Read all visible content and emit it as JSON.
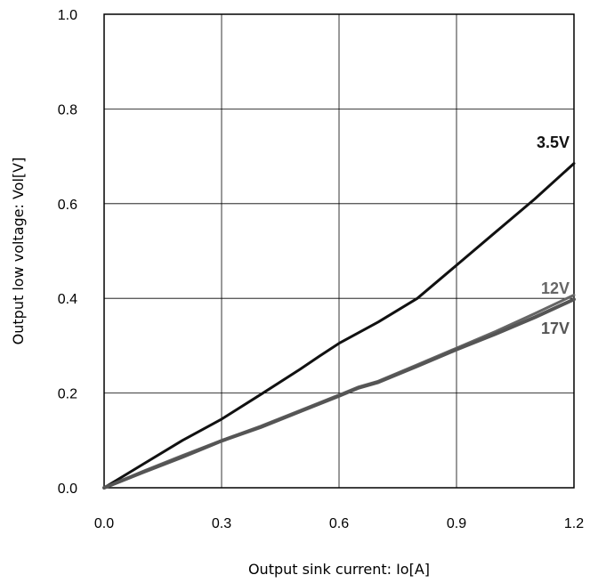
{
  "chart_data": {
    "type": "line",
    "xlabel": "Output sink current: Io[A]",
    "ylabel": "Output low voltage: Vol[V]",
    "xlim": [
      0,
      1.2
    ],
    "ylim": [
      0,
      1.0
    ],
    "xticks": [
      "0.0",
      "0.3",
      "0.6",
      "0.9",
      "1.2"
    ],
    "yticks": [
      "0.0",
      "0.2",
      "0.4",
      "0.6",
      "0.8",
      "1.0"
    ],
    "grid": true,
    "colors": {
      "3.5V": "#111111",
      "12V": "#666666",
      "17V": "#555555"
    },
    "series": [
      {
        "name": "3.5V",
        "x": [
          0,
          0.1,
          0.2,
          0.3,
          0.4,
          0.5,
          0.55,
          0.6,
          0.7,
          0.8,
          0.9,
          1.0,
          1.1,
          1.2
        ],
        "y": [
          0,
          0.05,
          0.1,
          0.145,
          0.197,
          0.25,
          0.278,
          0.305,
          0.35,
          0.4,
          0.47,
          0.54,
          0.61,
          0.685
        ]
      },
      {
        "name": "12V",
        "x": [
          0,
          0.1,
          0.2,
          0.3,
          0.4,
          0.5,
          0.6,
          0.65,
          0.7,
          0.8,
          0.9,
          1.0,
          1.1,
          1.2
        ],
        "y": [
          0,
          0.035,
          0.068,
          0.1,
          0.13,
          0.163,
          0.196,
          0.213,
          0.225,
          0.26,
          0.295,
          0.33,
          0.368,
          0.407
        ]
      },
      {
        "name": "17V",
        "x": [
          0,
          0.1,
          0.2,
          0.3,
          0.4,
          0.5,
          0.6,
          0.65,
          0.7,
          0.8,
          0.9,
          1.0,
          1.1,
          1.2
        ],
        "y": [
          0,
          0.033,
          0.065,
          0.099,
          0.128,
          0.161,
          0.194,
          0.211,
          0.223,
          0.257,
          0.292,
          0.325,
          0.36,
          0.398
        ]
      }
    ]
  }
}
